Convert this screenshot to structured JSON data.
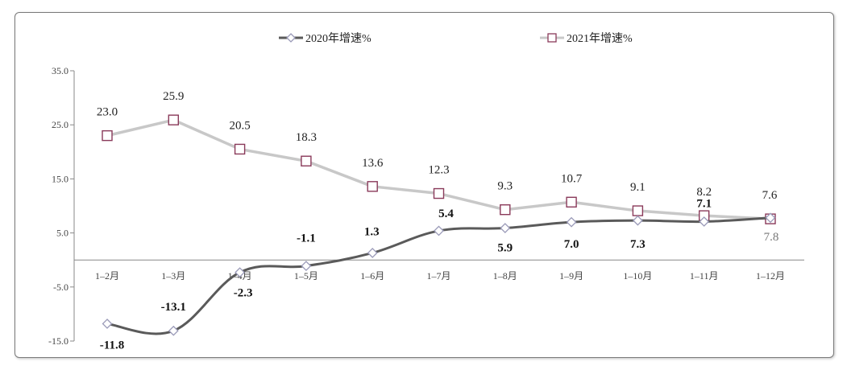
{
  "chart_data": {
    "type": "line",
    "categories": [
      "1–2月",
      "1–3月",
      "1–4月",
      "1–5月",
      "1–6月",
      "1–7月",
      "1–8月",
      "1–9月",
      "1–10月",
      "1–11月",
      "1–12月"
    ],
    "ylim": [
      -15.0,
      35.0
    ],
    "yticks": [
      "35.0",
      "25.0",
      "15.0",
      "5.0",
      "-5.0",
      "-15.0"
    ],
    "grid": false,
    "legend_position": "top-center",
    "series": [
      {
        "name": "2020年增速%",
        "values": [
          -11.8,
          -13.1,
          -2.3,
          -1.1,
          1.3,
          5.4,
          5.9,
          7.0,
          7.3,
          7.1,
          7.8
        ],
        "labels": [
          "-11.8",
          "-13.1",
          "-2.3",
          "-1.1",
          "1.3",
          "5.4",
          "5.9",
          "7.0",
          "7.3",
          "7.1",
          "7.8"
        ],
        "line_color": "#5a5a5a",
        "marker": "diamond",
        "marker_color": "#9a9ab8"
      },
      {
        "name": "2021年增速%",
        "values": [
          23.0,
          25.9,
          20.5,
          18.3,
          13.6,
          12.3,
          9.3,
          10.7,
          9.1,
          8.2,
          7.6
        ],
        "labels": [
          "23.0",
          "25.9",
          "20.5",
          "18.3",
          "13.6",
          "12.3",
          "9.3",
          "10.7",
          "9.1",
          "8.2",
          "7.6"
        ],
        "line_color": "#c8c8c8",
        "marker": "square",
        "marker_color": "#8a3a5a"
      }
    ]
  }
}
